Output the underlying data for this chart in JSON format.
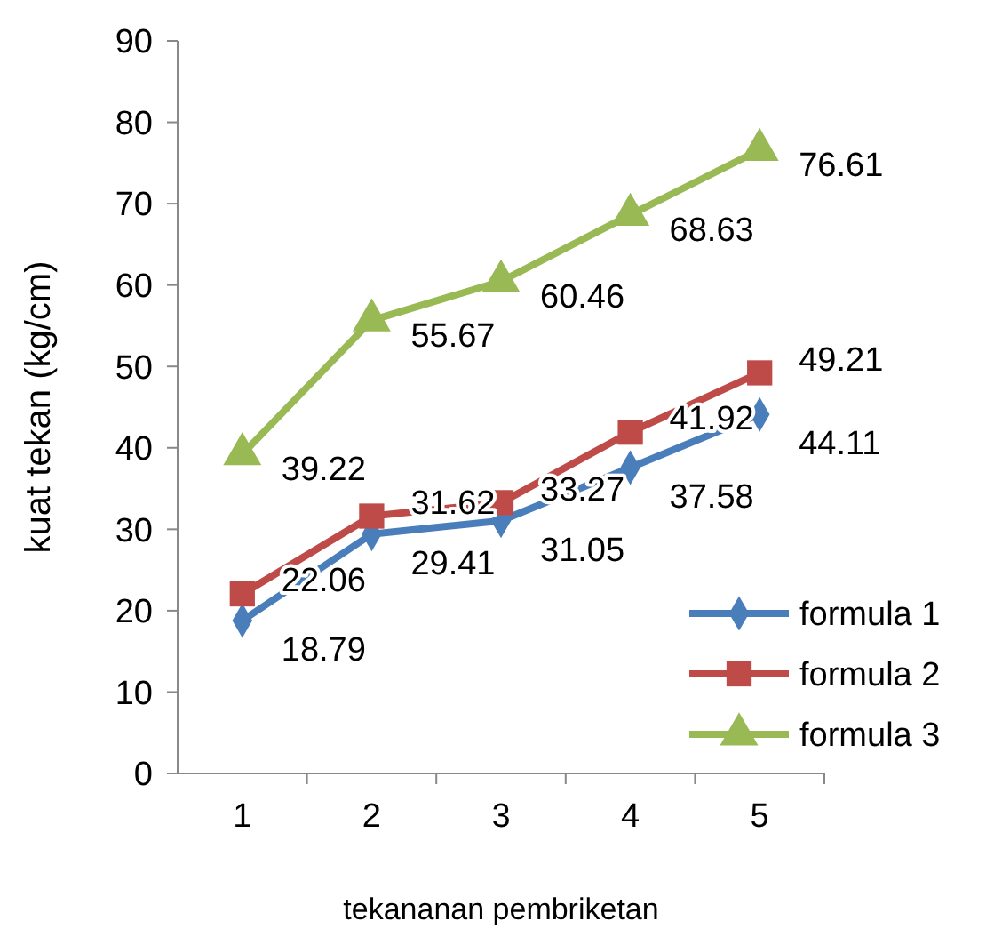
{
  "chart_data": {
    "type": "line",
    "xlabel": "tekananan pembriketan",
    "ylabel": "kuat tekan (kg/cm)",
    "categories": [
      "1",
      "2",
      "3",
      "4",
      "5"
    ],
    "series": [
      {
        "name": "formula 1",
        "color": "#4a7ebb",
        "marker": "diamond",
        "values": [
          18.79,
          29.41,
          31.05,
          37.58,
          44.11
        ]
      },
      {
        "name": "formula 2",
        "color": "#be4b48",
        "marker": "square",
        "values": [
          22.06,
          31.62,
          33.27,
          41.92,
          49.21
        ]
      },
      {
        "name": "formula 3",
        "color": "#98b954",
        "marker": "triangle",
        "values": [
          39.22,
          55.67,
          60.46,
          68.63,
          76.61
        ]
      }
    ],
    "ylim": [
      0,
      90
    ],
    "yticks": [
      0,
      10,
      20,
      30,
      40,
      50,
      60,
      70,
      80,
      90
    ],
    "grid": false,
    "legend": "bottom right",
    "data_labels": true
  }
}
